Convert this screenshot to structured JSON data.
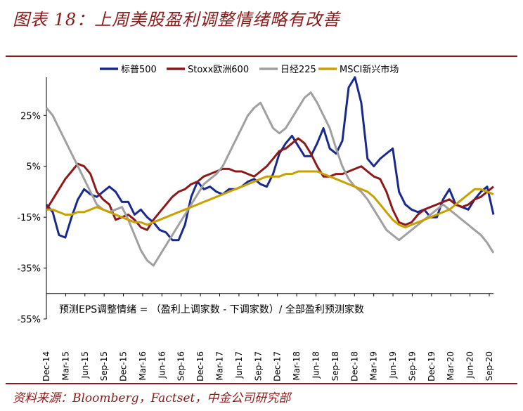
{
  "figure_title": "图表 18：上周美股盈利调整情绪略有改善",
  "source": "资料来源：Bloomberg，Factset，中金公司研究部",
  "chart_data": {
    "type": "line",
    "title": "",
    "xlabel": "",
    "ylabel": "",
    "ylim": [
      -55,
      40
    ],
    "y_ticks": [
      25,
      5,
      -15,
      -35,
      -55
    ],
    "y_tick_labels": [
      "25%",
      "5%",
      "-15%",
      "-35%",
      "-55%"
    ],
    "x_tick_labels": [
      "Dec-14",
      "Mar-15",
      "Jun-15",
      "Sep-15",
      "Dec-15",
      "Mar-16",
      "Jun-16",
      "Sep-16",
      "Dec-16",
      "Mar-17",
      "Jun-17",
      "Sep-17",
      "Dec-17",
      "Mar-18",
      "Jun-18",
      "Sep-18",
      "Dec-18",
      "Mar-19",
      "Jun-19",
      "Sep-19",
      "Dec-19",
      "Mar-20",
      "Jun-20",
      "Sep-20"
    ],
    "annotation": "预测EPS调整情绪 = （盈利上调家数 - 下调家数）/ 全部盈利预测家数",
    "legend_position": "top",
    "x": [
      0,
      1,
      2,
      3,
      4,
      5,
      6,
      7,
      8,
      9,
      10,
      11,
      12,
      13,
      14,
      15,
      16,
      17,
      18,
      19,
      20,
      21,
      22,
      23,
      24,
      25,
      26,
      27,
      28,
      29,
      30,
      31,
      32,
      33,
      34,
      35,
      36,
      37,
      38,
      39,
      40,
      41,
      42,
      43,
      44,
      45,
      46,
      47,
      48,
      49,
      50,
      51,
      52,
      53,
      54,
      55,
      56,
      57,
      58,
      59,
      60,
      61,
      62,
      63,
      64,
      65,
      66,
      67,
      68,
      69,
      70,
      71
    ],
    "series": [
      {
        "name": "标普500",
        "color": "#1a2a8c",
        "values": [
          -10,
          -13,
          -22,
          -23,
          -15,
          -8,
          -4,
          -6,
          -7,
          -5,
          -3,
          -5,
          -9,
          -9,
          -14,
          -12,
          -15,
          -17,
          -20,
          -21,
          -24,
          -24,
          -18,
          -7,
          -1,
          -4,
          -3,
          -5,
          -6,
          -4,
          -4,
          -3,
          -1,
          0,
          -2,
          -3,
          2,
          10,
          14,
          17,
          13,
          9,
          9,
          14,
          20,
          12,
          10,
          15,
          36,
          40,
          30,
          8,
          5,
          8,
          10,
          12,
          -5,
          -10,
          -12,
          -13,
          -12,
          -15,
          -15,
          -8,
          -4,
          -10,
          -11,
          -12,
          -8,
          -5,
          -3,
          -14
        ]
      },
      {
        "name": "Stoxx欧洲600",
        "color": "#8c1a1a",
        "values": [
          -12,
          -8,
          -4,
          0,
          3,
          6,
          5,
          2,
          -5,
          -8,
          -10,
          -16,
          -15,
          -14,
          -16,
          -19,
          -20,
          -16,
          -13,
          -10,
          -7,
          -5,
          -4,
          -2,
          -1,
          1,
          2,
          3,
          4,
          4,
          3,
          3,
          2,
          1,
          3,
          5,
          8,
          11,
          12,
          14,
          16,
          14,
          10,
          5,
          1,
          1,
          2,
          2,
          3,
          4,
          5,
          3,
          1,
          0,
          -5,
          -12,
          -17,
          -18,
          -17,
          -14,
          -12,
          -11,
          -10,
          -9,
          -8,
          -10,
          -11,
          -10,
          -8,
          -7,
          -5,
          -3
        ]
      },
      {
        "name": "日经225",
        "color": "#a0a0a0",
        "values": [
          28,
          25,
          20,
          15,
          10,
          5,
          0,
          -5,
          -10,
          -12,
          -13,
          -12,
          -11,
          -16,
          -22,
          -28,
          -32,
          -34,
          -30,
          -26,
          -22,
          -18,
          -14,
          -10,
          -6,
          -2,
          0,
          2,
          5,
          10,
          15,
          20,
          25,
          28,
          30,
          25,
          20,
          18,
          20,
          24,
          28,
          32,
          34,
          30,
          25,
          20,
          12,
          5,
          0,
          -3,
          -5,
          -8,
          -12,
          -16,
          -20,
          -22,
          -24,
          -22,
          -20,
          -18,
          -16,
          -14,
          -12,
          -10,
          -12,
          -14,
          -16,
          -18,
          -20,
          -22,
          -25,
          -29
        ]
      },
      {
        "name": "MSCI新兴市场",
        "color": "#c8a000",
        "values": [
          -12,
          -12,
          -13,
          -14,
          -14,
          -13,
          -13,
          -12,
          -11,
          -12,
          -13,
          -14,
          -15,
          -16,
          -17,
          -17,
          -18,
          -17,
          -16,
          -15,
          -14,
          -13,
          -12,
          -11,
          -10,
          -9,
          -8,
          -7,
          -6,
          -5,
          -4,
          -3,
          -2,
          -1,
          0,
          1,
          1,
          1,
          2,
          2,
          3,
          3,
          3,
          3,
          2,
          1,
          0,
          -1,
          -2,
          -3,
          -4,
          -5,
          -7,
          -10,
          -13,
          -16,
          -18,
          -19,
          -18,
          -17,
          -16,
          -15,
          -14,
          -13,
          -12,
          -10,
          -8,
          -6,
          -4,
          -4,
          -5,
          -6
        ]
      }
    ]
  }
}
